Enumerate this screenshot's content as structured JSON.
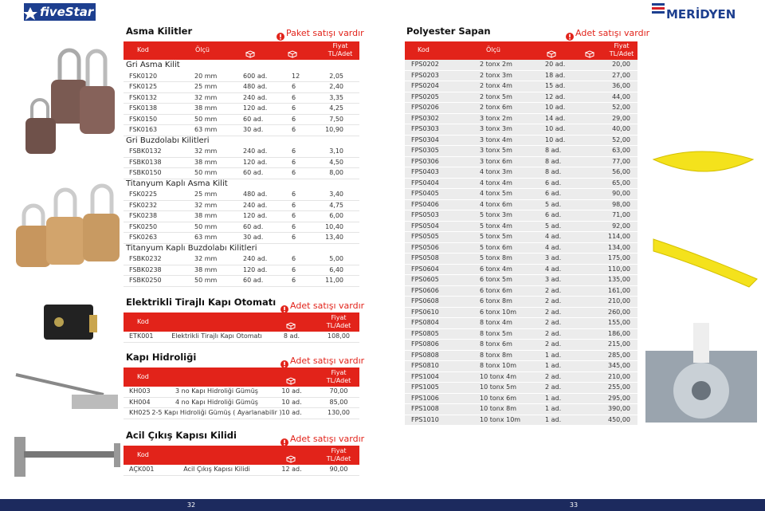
{
  "logos": {
    "left": "fiveStar",
    "right": "MERİDYEN"
  },
  "asma": {
    "title": "Asma Kilitler",
    "notice": "Paket satışı vardır",
    "header": {
      "kod": "Kod",
      "olcu": "Ölçü",
      "fiyat": "Fiyat",
      "unit": "TL/Adet"
    },
    "groups": [
      {
        "name": "Gri Asma Kilit",
        "rows": [
          [
            "FSK0120",
            "20 mm",
            "600 ad.",
            "12",
            "2,05"
          ],
          [
            "FSK0125",
            "25 mm",
            "480 ad.",
            "6",
            "2,40"
          ],
          [
            "FSK0132",
            "32 mm",
            "240 ad.",
            "6",
            "3,35"
          ],
          [
            "FSK0138",
            "38 mm",
            "120 ad.",
            "6",
            "4,25"
          ],
          [
            "FSK0150",
            "50 mm",
            "60 ad.",
            "6",
            "7,50"
          ],
          [
            "FSK0163",
            "63 mm",
            "30 ad.",
            "6",
            "10,90"
          ]
        ]
      },
      {
        "name": "Gri Buzdolabı Kilitleri",
        "rows": [
          [
            "FSBK0132",
            "32 mm",
            "240 ad.",
            "6",
            "3,10"
          ],
          [
            "FSBK0138",
            "38 mm",
            "120 ad.",
            "6",
            "4,50"
          ],
          [
            "FSBK0150",
            "50 mm",
            "60 ad.",
            "6",
            "8,00"
          ]
        ]
      },
      {
        "name": "Titanyum Kaplı Asma Kilit",
        "rows": [
          [
            "FSK0225",
            "25 mm",
            "480 ad.",
            "6",
            "3,40"
          ],
          [
            "FSK0232",
            "32 mm",
            "240 ad.",
            "6",
            "4,75"
          ],
          [
            "FSK0238",
            "38 mm",
            "120 ad.",
            "6",
            "6,00"
          ],
          [
            "FSK0250",
            "50 mm",
            "60 ad.",
            "6",
            "10,40"
          ],
          [
            "FSK0263",
            "63 mm",
            "30 ad.",
            "6",
            "13,40"
          ]
        ]
      },
      {
        "name": "Titanyum Kaplı Buzdolabı Kilitleri",
        "rows": [
          [
            "FSBK0232",
            "32 mm",
            "240 ad.",
            "6",
            "5,00"
          ],
          [
            "FSBK0238",
            "38 mm",
            "120 ad.",
            "6",
            "6,40"
          ],
          [
            "FSBK0250",
            "50 mm",
            "60 ad.",
            "6",
            "11,00"
          ]
        ]
      }
    ]
  },
  "sections": [
    {
      "title": "Elektrikli Tirajlı Kapı Otomatı",
      "notice": "Adet satışı vardır",
      "header": {
        "kod": "Kod",
        "fiyat": "Fiyat",
        "unit": "TL/Adet"
      },
      "rows": [
        [
          "ETK001",
          "Elektrikli Tirajlı Kapı Otomatı",
          "8 ad.",
          "108,00"
        ]
      ]
    },
    {
      "title": "Kapı Hidroliği",
      "notice": "Adet satışı vardır",
      "header": {
        "kod": "Kod",
        "fiyat": "Fiyat",
        "unit": "TL/Adet"
      },
      "rows": [
        [
          "KH003",
          "3 no Kapı Hidroliği Gümüş",
          "10 ad.",
          "70,00"
        ],
        [
          "KH004",
          "4 no Kapı Hidroliği Gümüş",
          "10 ad.",
          "85,00"
        ],
        [
          "KH025",
          "2-5  Kapı Hidroliği Gümüş ( Ayarlanabilir )",
          "10 ad.",
          "130,00"
        ]
      ]
    },
    {
      "title": "Acil Çıkış Kapısı Kilidi",
      "notice": "Adet satışı vardır",
      "header": {
        "kod": "Kod",
        "fiyat": "Fiyat",
        "unit": "TL/Adet"
      },
      "rows": [
        [
          "AÇK001",
          "Acil Çıkış Kapısı Kilidi",
          "12 ad.",
          "90,00"
        ]
      ]
    }
  ],
  "sapan": {
    "title": "Polyester Sapan",
    "notice": "Adet satışı vardır",
    "header": {
      "kod": "Kod",
      "olcu": "Ölçü",
      "fiyat": "Fiyat",
      "unit": "TL/Adet"
    },
    "rows": [
      [
        "FPS0202",
        "2 tonx 2m",
        "20 ad.",
        "20,00"
      ],
      [
        "FPS0203",
        "2 tonx 3m",
        "18 ad.",
        "27,00"
      ],
      [
        "FPS0204",
        "2 tonx 4m",
        "15 ad.",
        "36,00"
      ],
      [
        "FPS0205",
        "2 tonx 5m",
        "12 ad.",
        "44,00"
      ],
      [
        "FPS0206",
        "2 tonx 6m",
        "10 ad.",
        "52,00"
      ],
      [
        "FPS0302",
        "3 tonx 2m",
        "14 ad.",
        "29,00"
      ],
      [
        "FPS0303",
        "3 tonx 3m",
        "10 ad.",
        "40,00"
      ],
      [
        "FPS0304",
        "3 tonx 4m",
        "10 ad.",
        "52,00"
      ],
      [
        "FPS0305",
        "3 tonx 5m",
        "8 ad.",
        "63,00"
      ],
      [
        "FPS0306",
        "3 tonx 6m",
        "8 ad.",
        "77,00"
      ],
      [
        "FPS0403",
        "4 tonx 3m",
        "8 ad.",
        "56,00"
      ],
      [
        "FPS0404",
        "4 tonx 4m",
        "6 ad.",
        "65,00"
      ],
      [
        "FPS0405",
        "4 tonx 5m",
        "6 ad.",
        "90,00"
      ],
      [
        "FPS0406",
        "4 tonx 6m",
        "5 ad.",
        "98,00"
      ],
      [
        "FPS0503",
        "5 tonx 3m",
        "6 ad.",
        "71,00"
      ],
      [
        "FPS0504",
        "5 tonx 4m",
        "5 ad.",
        "92,00"
      ],
      [
        "FPS0505",
        "5 tonx 5m",
        "4 ad.",
        "114,00"
      ],
      [
        "FPS0506",
        "5 tonx 6m",
        "4 ad.",
        "134,00"
      ],
      [
        "FPS0508",
        "5 tonx 8m",
        "3 ad.",
        "175,00"
      ],
      [
        "FPS0604",
        "6 tonx 4m",
        "4 ad.",
        "110,00"
      ],
      [
        "FPS0605",
        "6 tonx 5m",
        "3 ad.",
        "135,00"
      ],
      [
        "FPS0606",
        "6 tonx 6m",
        "2 ad.",
        "161,00"
      ],
      [
        "FPS0608",
        "6 tonx 8m",
        "2 ad.",
        "210,00"
      ],
      [
        "FPS0610",
        "6 tonx 10m",
        "2 ad.",
        "260,00"
      ],
      [
        "FPS0804",
        "8 tonx 4m",
        "2 ad.",
        "155,00"
      ],
      [
        "FPS0805",
        "8 tonx 5m",
        "2 ad.",
        "186,00"
      ],
      [
        "FPS0806",
        "8 tonx 6m",
        "2 ad.",
        "215,00"
      ],
      [
        "FPS0808",
        "8 tonx 8m",
        "1 ad.",
        "285,00"
      ],
      [
        "FPS0810",
        "8 tonx 10m",
        "1 ad.",
        "345,00"
      ],
      [
        "FPS1004",
        "10 tonx 4m",
        "2 ad.",
        "210,00"
      ],
      [
        "FPS1005",
        "10 tonx 5m",
        "2 ad.",
        "255,00"
      ],
      [
        "FPS1006",
        "10 tonx 6m",
        "1 ad.",
        "295,00"
      ],
      [
        "FPS1008",
        "10 tonx 8m",
        "1 ad.",
        "390,00"
      ],
      [
        "FPS1010",
        "10 tonx 10m",
        "1 ad.",
        "450,00"
      ]
    ]
  },
  "pages": [
    "32",
    "33"
  ]
}
